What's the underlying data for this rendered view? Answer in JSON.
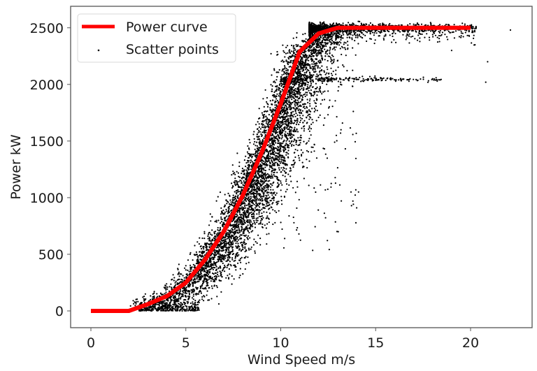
{
  "chart_data": {
    "type": "scatter",
    "title": "",
    "xlabel": "Wind Speed m/s",
    "ylabel": "Power kW",
    "xlim": [
      -1.1,
      23.1
    ],
    "ylim": [
      -150,
      2630
    ],
    "xticks": [
      0,
      5,
      10,
      15,
      20
    ],
    "yticks": [
      0,
      500,
      1000,
      1500,
      2000,
      2500
    ],
    "grid": false,
    "legend_position": "upper left",
    "legend": [
      {
        "label": "Power curve",
        "type": "line",
        "color": "#ff0000"
      },
      {
        "label": "Scatter points",
        "type": "marker",
        "color": "#000000"
      }
    ],
    "series": [
      {
        "name": "Power curve",
        "type": "line",
        "color": "#ff0000",
        "x": [
          0,
          1,
          2,
          3,
          4,
          5,
          6,
          7,
          8,
          9,
          10,
          11,
          12,
          13,
          14,
          15,
          16,
          17,
          18,
          19,
          20
        ],
        "y": [
          0,
          0,
          0,
          60,
          130,
          250,
          450,
          700,
          1020,
          1400,
          1830,
          2290,
          2450,
          2500,
          2500,
          2500,
          2500,
          2500,
          2500,
          2500,
          2500
        ]
      },
      {
        "name": "Scatter points",
        "type": "scatter",
        "color": "#000000",
        "approx_count": 7000,
        "description": "Dense cloud around the power curve from ~2 to ~13 m/s, spreading right (lower power) of the curve; plateau band at ~2500 kW from 12 to 22 m/s; secondary curtailed band at ~2050 kW from 10 to 21 m/s; sparse outliers near 1000 kW at 13-14 m/s",
        "x_range": [
          2,
          22.2
        ],
        "y_range": [
          0,
          2560
        ]
      }
    ]
  }
}
